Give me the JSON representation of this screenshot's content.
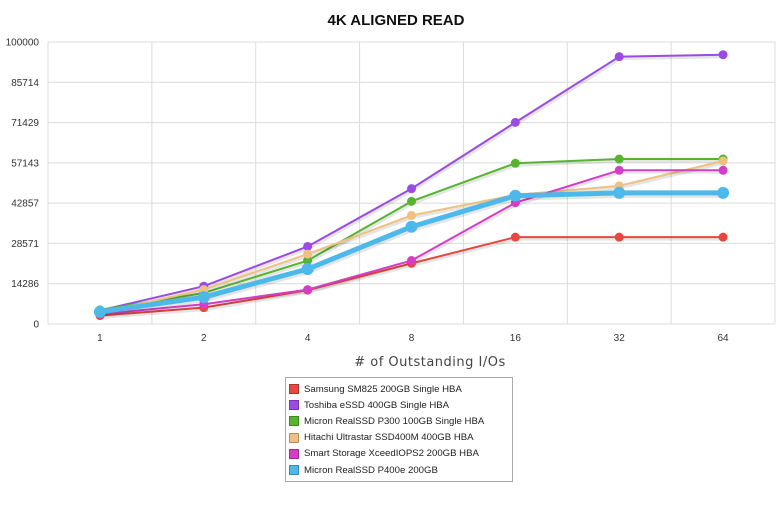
{
  "chart_data": {
    "type": "line",
    "title": "4K ALIGNED READ",
    "xlabel": "# of Outstanding I/Os",
    "ylabel": "",
    "categories": [
      "1",
      "2",
      "4",
      "8",
      "16",
      "32",
      "64"
    ],
    "y_ticks": [
      "0",
      "14286",
      "28571",
      "42857",
      "57143",
      "71429",
      "85714",
      "100000"
    ],
    "ylim": [
      0,
      100000
    ],
    "grid": true,
    "legend_position": "bottom",
    "series": [
      {
        "name": "Samsung SM825 200GB Single HBA",
        "color": "#e8473f",
        "values": [
          3000,
          5800,
          12000,
          21500,
          30800,
          30800,
          30800
        ]
      },
      {
        "name": "Toshiba eSSD 400GB Single HBA",
        "color": "#9b4be3",
        "values": [
          4800,
          13400,
          27500,
          48000,
          71500,
          94800,
          95500
        ]
      },
      {
        "name": "Micron RealSSD P300 100GB Single HBA",
        "color": "#57b431",
        "values": [
          5000,
          11000,
          22500,
          43500,
          57000,
          58500,
          58500
        ]
      },
      {
        "name": "Hitachi Ultrastar SSD400M 400GB HBA",
        "color": "#efc07f",
        "values": [
          4000,
          12200,
          24800,
          38500,
          45800,
          49000,
          57800
        ]
      },
      {
        "name": "Smart Storage XceedIOPS2 200GB HBA",
        "color": "#d53dc6",
        "values": [
          3500,
          7000,
          12200,
          22500,
          43000,
          54500,
          54500
        ]
      },
      {
        "name": "Micron RealSSD P400e 200GB",
        "color": "#4cb9ea",
        "values": [
          4300,
          9500,
          19500,
          34500,
          45500,
          46500,
          46500
        ]
      }
    ]
  }
}
